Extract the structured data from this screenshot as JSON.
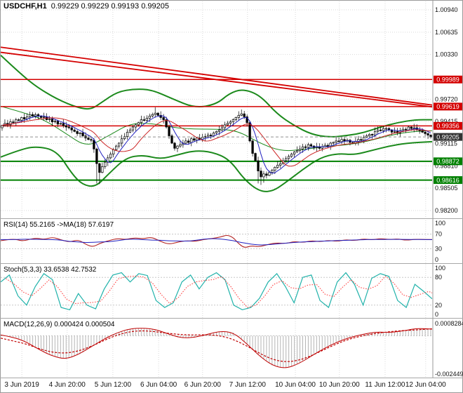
{
  "window": {
    "symbol_tf": "USDCHF,H1",
    "ohlc_text": "0.99229 0.99229 0.99193 0.99205"
  },
  "panels": {
    "rsi": {
      "header": "RSI(14) 55.2165 ->MA(18) 57.6197",
      "axis": [
        "100",
        "70",
        "30",
        "0"
      ],
      "levels": [
        70,
        30
      ]
    },
    "stoch": {
      "header": "Stoch(5,3,3) 33.6538 42.7532",
      "axis": [
        "100",
        "80",
        "20",
        "0"
      ],
      "levels": [
        80,
        20
      ]
    },
    "macd": {
      "header": "MACD(12,26,9) 0.000424 0.000504",
      "axis_top": "0.0008284",
      "axis_bottom": "-0.002449"
    }
  },
  "price_tags": [
    {
      "text": "0.99989",
      "price": 0.99989,
      "type": "resistance"
    },
    {
      "text": "0.99619",
      "price": 0.99619,
      "type": "resistance"
    },
    {
      "text": "0.99356",
      "price": 0.99356,
      "type": "resistance"
    },
    {
      "text": "0.99205",
      "price": 0.99205,
      "type": "current"
    },
    {
      "text": "0.98872",
      "price": 0.98872,
      "type": "support"
    },
    {
      "text": "0.98616",
      "price": 0.98616,
      "type": "support"
    }
  ],
  "colors": {
    "resistance": "#d40000",
    "support": "#008000",
    "current_tag": "#333333",
    "bands": "#1c8a1c",
    "grid": "#d9d9d9",
    "bull": "#ffffff",
    "bear": "#000000",
    "ma_fast": "#2020c0",
    "ma_slow": "#cc2222",
    "rsi_line": "#b22222",
    "rsi_ma": "#2020c0",
    "stoch_k": "#20b2aa",
    "stoch_d": "#ff3030",
    "macd_hist": "#b4b4b4",
    "macd_signal": "#c00000"
  },
  "chart_data": {
    "type": "candlestick",
    "symbol": "USDCHF",
    "timeframe": "H1",
    "title": "USDCHF,H1 0.99229 0.99229 0.99193 0.99205",
    "ohlc": {
      "open": 0.99229,
      "high": 0.99229,
      "low": 0.99193,
      "close": 0.99205
    },
    "y_axis": {
      "min": 0.982,
      "max": 1.0094,
      "ticks": [
        "1.00940",
        "1.00635",
        "1.00330",
        "0.99720",
        "0.99415",
        "0.99115",
        "0.98810",
        "0.98505",
        "0.98200"
      ]
    },
    "x_axis": {
      "labels": [
        "3 Jun 2019",
        "4 Jun 20:00",
        "5 Jun 12:00",
        "6 Jun 04:00",
        "6 Jun 20:00",
        "7 Jun 12:00",
        "10 Jun 04:00",
        "10 Jun 20:00",
        "11 Jun 12:00",
        "12 Jun 04:00"
      ],
      "fractions": [
        0.049,
        0.154,
        0.26,
        0.366,
        0.468,
        0.572,
        0.683,
        0.785,
        0.891,
        0.985
      ]
    },
    "candles": {
      "base": 0.98,
      "pip": 0.0001,
      "closes_pips": [
        136,
        139,
        137,
        141,
        140,
        144,
        143,
        147,
        145,
        148,
        151,
        149,
        151,
        149,
        147,
        148,
        144,
        145,
        141,
        142,
        138,
        139,
        136,
        134,
        133,
        130,
        128,
        125,
        126,
        122,
        119,
        117,
        116,
        104,
        84,
        72,
        80,
        86,
        92,
        97,
        103,
        108,
        112,
        118,
        121,
        127,
        130,
        134,
        137,
        140,
        144,
        143,
        146,
        149,
        151,
        153,
        150,
        147,
        144,
        134,
        122,
        112,
        105,
        108,
        110,
        112,
        115,
        113,
        118,
        116,
        119,
        117,
        120,
        121,
        123,
        122,
        126,
        128,
        130,
        133,
        137,
        139,
        141,
        144,
        147,
        150,
        152,
        148,
        140,
        115,
        98,
        88,
        74,
        66,
        70,
        68,
        72,
        75,
        79,
        82,
        84,
        88,
        91,
        94,
        97,
        100,
        102,
        104,
        107,
        106,
        110,
        108,
        106,
        107,
        105,
        107,
        109,
        108,
        112,
        113,
        115,
        114,
        117,
        115,
        116,
        113,
        112,
        114,
        117,
        116,
        120,
        122,
        124,
        123,
        128,
        130,
        129,
        132,
        132,
        130,
        127,
        128,
        126,
        129,
        131,
        130,
        134,
        132,
        133,
        130,
        129,
        127,
        125,
        123,
        120.5
      ],
      "spike_lows": {
        "34": 57,
        "35": 56,
        "92": 57,
        "93": 55,
        "94": 58
      },
      "spike_highs": {
        "55": 161,
        "86": 158
      }
    },
    "levels": {
      "resistance": [
        0.99989,
        0.99619,
        0.99356
      ],
      "support": [
        0.98872,
        0.98616
      ],
      "current": 0.99205
    },
    "trendlines": {
      "red": [
        [
          [
            0,
            1.0043
          ],
          [
            1,
            0.9964
          ]
        ],
        [
          [
            0,
            1.0036
          ],
          [
            1,
            0.99615
          ]
        ]
      ]
    },
    "bands": {
      "upper": [
        [
          0,
          1.0032
        ],
        [
          0.04,
          1.001
        ],
        [
          0.08,
          0.999
        ],
        [
          0.13,
          0.9972
        ],
        [
          0.18,
          0.996
        ],
        [
          0.21,
          0.9958
        ],
        [
          0.235,
          0.9968
        ],
        [
          0.27,
          0.9982
        ],
        [
          0.31,
          0.9986
        ],
        [
          0.35,
          0.9985
        ],
        [
          0.4,
          0.9972
        ],
        [
          0.45,
          0.996
        ],
        [
          0.5,
          0.9965
        ],
        [
          0.53,
          0.998
        ],
        [
          0.56,
          0.9986
        ],
        [
          0.6,
          0.9978
        ],
        [
          0.64,
          0.9952
        ],
        [
          0.68,
          0.9936
        ],
        [
          0.72,
          0.9924
        ],
        [
          0.76,
          0.992
        ],
        [
          0.8,
          0.9922
        ],
        [
          0.84,
          0.9926
        ],
        [
          0.88,
          0.9934
        ],
        [
          0.92,
          0.994
        ],
        [
          0.96,
          0.9944
        ],
        [
          1,
          0.9944
        ]
      ],
      "lower": [
        [
          0,
          0.9893
        ],
        [
          0.04,
          0.9902
        ],
        [
          0.08,
          0.9908
        ],
        [
          0.13,
          0.9902
        ],
        [
          0.165,
          0.987
        ],
        [
          0.19,
          0.9855
        ],
        [
          0.22,
          0.9852
        ],
        [
          0.25,
          0.987
        ],
        [
          0.29,
          0.9892
        ],
        [
          0.33,
          0.9896
        ],
        [
          0.37,
          0.989
        ],
        [
          0.41,
          0.9896
        ],
        [
          0.45,
          0.9902
        ],
        [
          0.49,
          0.99
        ],
        [
          0.53,
          0.989
        ],
        [
          0.565,
          0.9862
        ],
        [
          0.6,
          0.9846
        ],
        [
          0.63,
          0.9846
        ],
        [
          0.66,
          0.9858
        ],
        [
          0.7,
          0.9876
        ],
        [
          0.74,
          0.9892
        ],
        [
          0.78,
          0.9898
        ],
        [
          0.82,
          0.9896
        ],
        [
          0.86,
          0.9902
        ],
        [
          0.9,
          0.9908
        ],
        [
          0.94,
          0.9912
        ],
        [
          1,
          0.9914
        ]
      ]
    },
    "rsi": {
      "value": 55.2165,
      "ma_value": 57.6197,
      "points": [
        [
          0,
          52
        ],
        [
          0.03,
          58
        ],
        [
          0.05,
          50
        ],
        [
          0.08,
          60
        ],
        [
          0.1,
          55
        ],
        [
          0.12,
          62
        ],
        [
          0.14,
          54
        ],
        [
          0.16,
          48
        ],
        [
          0.18,
          55
        ],
        [
          0.2,
          40
        ],
        [
          0.215,
          35
        ],
        [
          0.23,
          45
        ],
        [
          0.25,
          52
        ],
        [
          0.27,
          58
        ],
        [
          0.29,
          55
        ],
        [
          0.31,
          60
        ],
        [
          0.33,
          57
        ],
        [
          0.35,
          62
        ],
        [
          0.37,
          50
        ],
        [
          0.39,
          42
        ],
        [
          0.41,
          48
        ],
        [
          0.43,
          52
        ],
        [
          0.45,
          50
        ],
        [
          0.47,
          55
        ],
        [
          0.49,
          58
        ],
        [
          0.51,
          62
        ],
        [
          0.525,
          68
        ],
        [
          0.54,
          60
        ],
        [
          0.55,
          45
        ],
        [
          0.565,
          32
        ],
        [
          0.58,
          38
        ],
        [
          0.6,
          35
        ],
        [
          0.62,
          42
        ],
        [
          0.64,
          46
        ],
        [
          0.66,
          44
        ],
        [
          0.68,
          50
        ],
        [
          0.7,
          47
        ],
        [
          0.72,
          52
        ],
        [
          0.74,
          49
        ],
        [
          0.76,
          53
        ],
        [
          0.78,
          50
        ],
        [
          0.8,
          55
        ],
        [
          0.82,
          52
        ],
        [
          0.84,
          57
        ],
        [
          0.86,
          54
        ],
        [
          0.88,
          58
        ],
        [
          0.9,
          55
        ],
        [
          0.92,
          57
        ],
        [
          0.94,
          53
        ],
        [
          0.96,
          56
        ],
        [
          0.98,
          55
        ],
        [
          1,
          55.2
        ]
      ]
    },
    "stoch": {
      "k": 33.6538,
      "d": 42.7532,
      "points": [
        [
          0,
          70
        ],
        [
          0.02,
          85
        ],
        [
          0.04,
          40
        ],
        [
          0.06,
          20
        ],
        [
          0.08,
          60
        ],
        [
          0.1,
          88
        ],
        [
          0.12,
          75
        ],
        [
          0.14,
          15
        ],
        [
          0.16,
          10
        ],
        [
          0.18,
          45
        ],
        [
          0.2,
          20
        ],
        [
          0.22,
          12
        ],
        [
          0.24,
          55
        ],
        [
          0.26,
          85
        ],
        [
          0.28,
          90
        ],
        [
          0.3,
          70
        ],
        [
          0.32,
          88
        ],
        [
          0.34,
          84
        ],
        [
          0.36,
          30
        ],
        [
          0.38,
          15
        ],
        [
          0.4,
          25
        ],
        [
          0.42,
          70
        ],
        [
          0.44,
          85
        ],
        [
          0.46,
          55
        ],
        [
          0.48,
          80
        ],
        [
          0.5,
          90
        ],
        [
          0.52,
          75
        ],
        [
          0.54,
          20
        ],
        [
          0.56,
          10
        ],
        [
          0.58,
          15
        ],
        [
          0.6,
          35
        ],
        [
          0.62,
          70
        ],
        [
          0.64,
          88
        ],
        [
          0.66,
          60
        ],
        [
          0.68,
          25
        ],
        [
          0.7,
          80
        ],
        [
          0.72,
          85
        ],
        [
          0.74,
          30
        ],
        [
          0.76,
          15
        ],
        [
          0.78,
          70
        ],
        [
          0.8,
          90
        ],
        [
          0.82,
          65
        ],
        [
          0.84,
          20
        ],
        [
          0.86,
          78
        ],
        [
          0.88,
          88
        ],
        [
          0.9,
          82
        ],
        [
          0.92,
          30
        ],
        [
          0.94,
          15
        ],
        [
          0.96,
          65
        ],
        [
          0.98,
          50
        ],
        [
          1,
          33.7
        ]
      ]
    },
    "macd": {
      "macd": 0.000424,
      "signal": 0.000504,
      "axis_max": 0.0008284,
      "axis_min": -0.002449,
      "points_e4": [
        [
          0,
          0.5
        ],
        [
          0.03,
          -1
        ],
        [
          0.06,
          -4
        ],
        [
          0.09,
          -9
        ],
        [
          0.12,
          -13
        ],
        [
          0.15,
          -15
        ],
        [
          0.18,
          -12
        ],
        [
          0.21,
          -7
        ],
        [
          0.24,
          -2
        ],
        [
          0.27,
          2
        ],
        [
          0.3,
          4.5
        ],
        [
          0.33,
          5
        ],
        [
          0.36,
          4
        ],
        [
          0.39,
          1
        ],
        [
          0.42,
          -1.5
        ],
        [
          0.45,
          -1
        ],
        [
          0.48,
          1
        ],
        [
          0.51,
          3
        ],
        [
          0.54,
          2
        ],
        [
          0.57,
          -5
        ],
        [
          0.6,
          -13
        ],
        [
          0.63,
          -19
        ],
        [
          0.66,
          -21
        ],
        [
          0.69,
          -18
        ],
        [
          0.72,
          -13
        ],
        [
          0.75,
          -8
        ],
        [
          0.78,
          -4
        ],
        [
          0.81,
          -1
        ],
        [
          0.84,
          1
        ],
        [
          0.87,
          2.5
        ],
        [
          0.9,
          2
        ],
        [
          0.93,
          3
        ],
        [
          0.96,
          4.5
        ],
        [
          0.98,
          4.6
        ],
        [
          1,
          4.24
        ]
      ]
    }
  }
}
